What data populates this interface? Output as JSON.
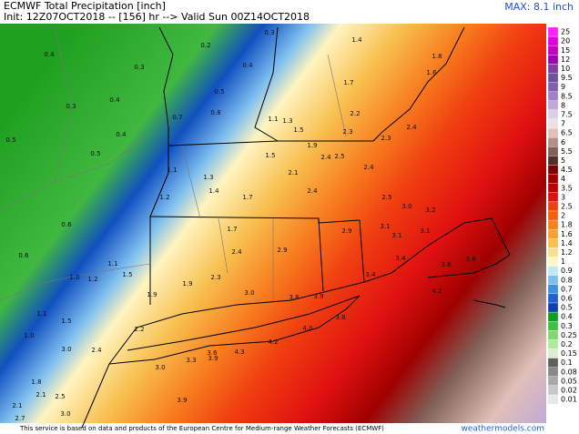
{
  "header": {
    "title": "ECMWF Total Precipitation [inch]",
    "subtitle": "Init: 12Z07OCT2018 -- [156] hr --> Valid Sun 00Z14OCT2018",
    "max_label": "MAX: 8.1 inch"
  },
  "legend": {
    "labels": [
      "25",
      "20",
      "15",
      "12",
      "10",
      "9.5",
      "9",
      "8.5",
      "8",
      "7.5",
      "7",
      "6.5",
      "6",
      "5.5",
      "5",
      "4.5",
      "4",
      "3.5",
      "3",
      "2.5",
      "2",
      "1.8",
      "1.6",
      "1.4",
      "1.2",
      "1",
      "0.9",
      "0.8",
      "0.7",
      "0.6",
      "0.5",
      "0.4",
      "0.3",
      "0.25",
      "0.2",
      "0.15",
      "0.1",
      "0.08",
      "0.05",
      "0.02",
      "0.01"
    ],
    "colors": [
      "#ff20ff",
      "#e000e0",
      "#c000c0",
      "#a000b0",
      "#8040a0",
      "#7050a0",
      "#8060b0",
      "#a080c8",
      "#c0a8d8",
      "#dcd0e8",
      "#f0e0e0",
      "#e0c0b8",
      "#b09088",
      "#806058",
      "#503028",
      "#800000",
      "#a00000",
      "#c00000",
      "#e01010",
      "#f04010",
      "#f86010",
      "#f88020",
      "#f8a030",
      "#f8c050",
      "#f8e090",
      "#fff8c0",
      "#c0e8f8",
      "#80c0f0",
      "#4090e0",
      "#2060d0",
      "#1040b0",
      "#10a020",
      "#40c040",
      "#80d870",
      "#b0e8a0",
      "#d8f0d0",
      "#606060",
      "#888888",
      "#a8a8a8",
      "#c8c8c8",
      "#e8e8e8"
    ]
  },
  "map_labels": [
    "0.4",
    "0.3",
    "0.2",
    "0.3",
    "1.4",
    "1.8",
    "1.6",
    "0.3",
    "0.4",
    "0.4",
    "0.5",
    "1.7",
    "0.8",
    "0.7",
    "0.4",
    "0.5",
    "0.5",
    "1.1",
    "1.3",
    "1.5",
    "2.2",
    "2.3",
    "2.4",
    "2.3",
    "1.9",
    "1.5",
    "2.4",
    "2.5",
    "1.1",
    "1.3",
    "2.1",
    "2.4",
    "1.4",
    "1.7",
    "2.4",
    "1.2",
    "2.5",
    "3.0",
    "3.2",
    "0.6",
    "1.7",
    "2.9",
    "2.9",
    "3.1",
    "3.1",
    "3.1",
    "0.6",
    "2.4",
    "1.1",
    "3.4",
    "3.6",
    "3.8",
    "1.0",
    "1.2",
    "1.5",
    "2.3",
    "3.4",
    "1.9",
    "3.0",
    "3.8",
    "3.9",
    "4.2",
    "1.9",
    "1.5",
    "3.8",
    "4.0",
    "1.0",
    "2.2",
    "4.2",
    "2.4",
    "3.0",
    "3.6",
    "3.9",
    "4.3",
    "3.3",
    "3.0",
    "1.8",
    "2.1",
    "2.5",
    "2.1",
    "3.0",
    "3.9",
    "2.7",
    "1.1"
  ],
  "footer": {
    "notice": "This service is based on data and products of the European Centre for Medium-range Weather Forecasts (ECMWF)",
    "site": "weathermodels.com"
  }
}
